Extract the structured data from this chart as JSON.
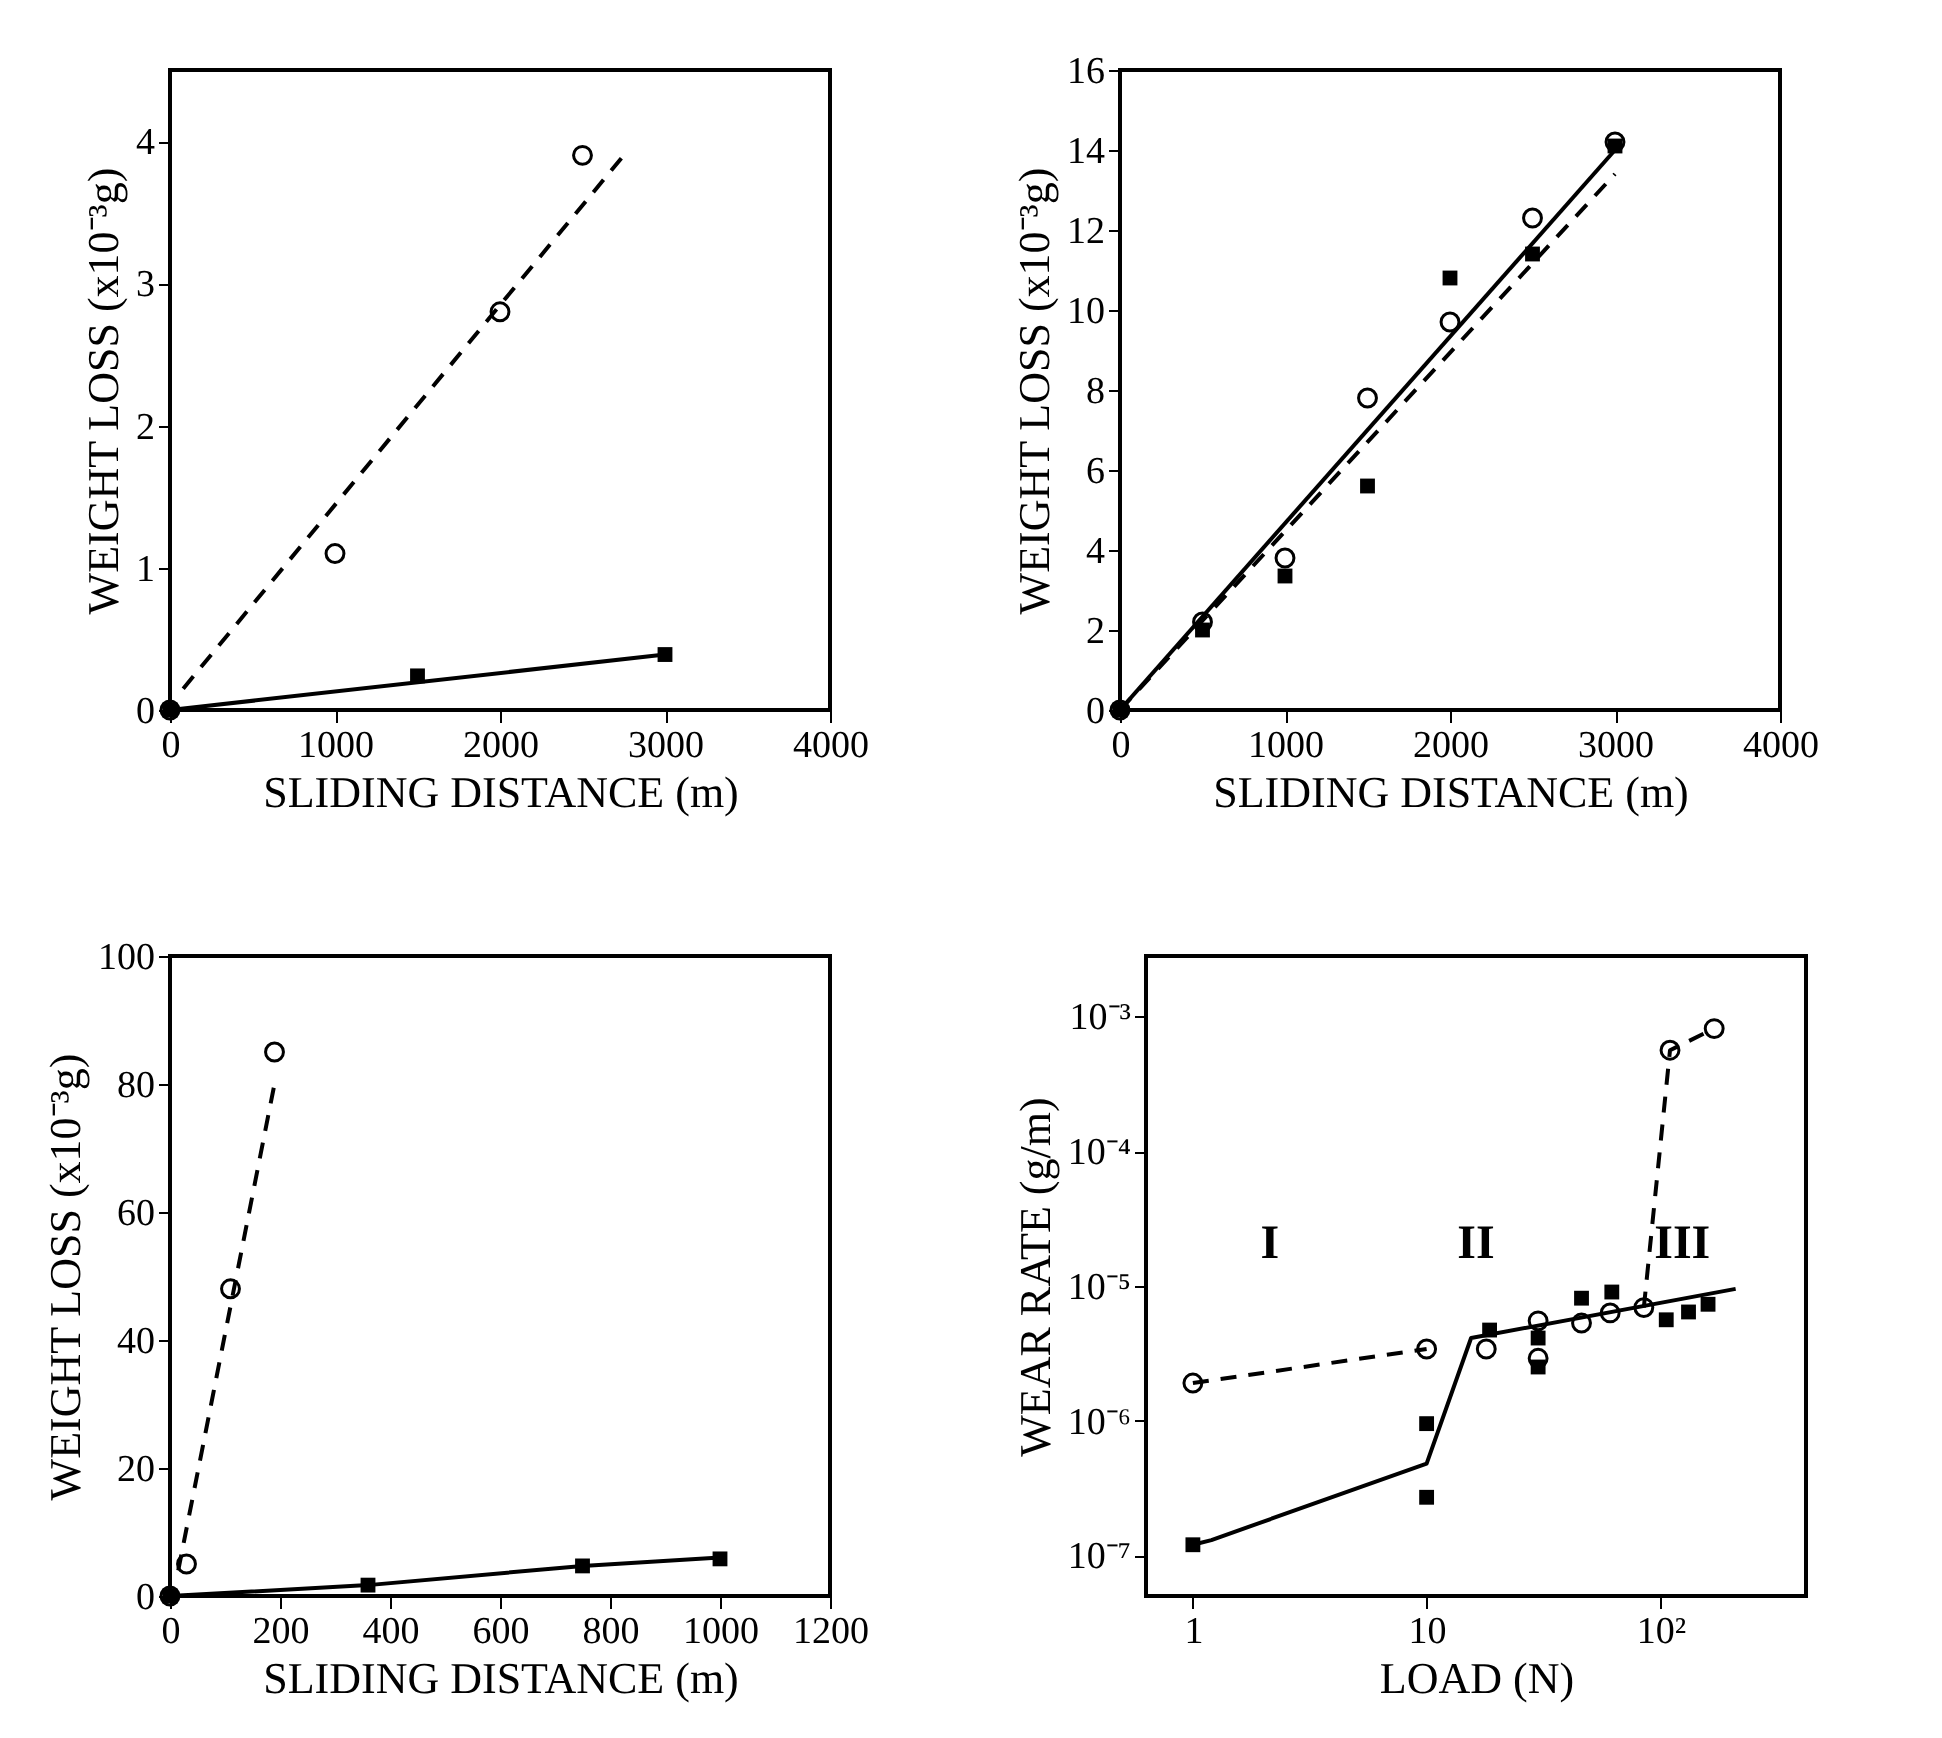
{
  "chart_data": [
    {
      "type": "scatter",
      "xlabel": "SLIDING DISTANCE (m)",
      "ylabel": "WEIGHT LOSS (x10⁻³g)",
      "xlim": [
        0,
        4000
      ],
      "xticks": [
        0,
        1000,
        2000,
        3000,
        4000
      ],
      "ylim": [
        0,
        4.5
      ],
      "yticks": [
        0,
        1,
        2,
        3,
        4
      ],
      "grid": false,
      "series": [
        {
          "type": "line",
          "color": "#000000",
          "line_style": "dashed",
          "marker": "none",
          "x": [
            80,
            2750
          ],
          "values": [
            0.15,
            3.9
          ]
        },
        {
          "type": "line",
          "color": "#000000",
          "line_style": "solid",
          "marker": "none",
          "x": [
            0,
            3000
          ],
          "values": [
            0,
            0.39
          ]
        },
        {
          "type": "scatter",
          "color": "#000000",
          "marker": "circle",
          "x": [
            0,
            1000,
            2000,
            2500
          ],
          "values": [
            0,
            1.1,
            2.8,
            3.9
          ]
        },
        {
          "type": "scatter",
          "color": "#000000",
          "marker": "square",
          "x": [
            0,
            1500,
            3000
          ],
          "values": [
            0,
            0.24,
            0.39
          ]
        }
      ]
    },
    {
      "type": "scatter",
      "xlabel": "SLIDING DISTANCE (m)",
      "ylabel": "WEIGHT LOSS (x10⁻³g)",
      "xlim": [
        0,
        4000
      ],
      "xticks": [
        0,
        1000,
        2000,
        3000,
        4000
      ],
      "ylim": [
        0,
        16
      ],
      "yticks": [
        0,
        2,
        4,
        6,
        8,
        10,
        12,
        14,
        16
      ],
      "grid": false,
      "series": [
        {
          "type": "line",
          "color": "#000000",
          "line_style": "dashed",
          "marker": "none",
          "x": [
            0,
            3000
          ],
          "values": [
            0,
            13.4
          ]
        },
        {
          "type": "line",
          "color": "#000000",
          "line_style": "solid",
          "marker": "none",
          "x": [
            0,
            3000
          ],
          "values": [
            0,
            14.0
          ]
        },
        {
          "type": "scatter",
          "color": "#000000",
          "marker": "circle",
          "x": [
            0,
            500,
            1000,
            1500,
            2000,
            2500,
            3000
          ],
          "values": [
            0,
            2.2,
            3.8,
            7.8,
            9.7,
            12.3,
            14.2
          ]
        },
        {
          "type": "scatter",
          "color": "#000000",
          "marker": "square",
          "x": [
            0,
            500,
            1000,
            1500,
            2000,
            2500,
            3000
          ],
          "values": [
            0,
            2.0,
            3.35,
            5.6,
            10.8,
            11.4,
            14.1
          ]
        }
      ]
    },
    {
      "type": "scatter",
      "xlabel": "SLIDING DISTANCE (m)",
      "ylabel": "WEIGHT LOSS (x10⁻³g)",
      "xlim": [
        0,
        1200
      ],
      "xticks": [
        0,
        200,
        400,
        600,
        800,
        1000,
        1200
      ],
      "ylim": [
        0,
        100
      ],
      "yticks": [
        0,
        20,
        40,
        60,
        80,
        100
      ],
      "grid": false,
      "series": [
        {
          "type": "line",
          "color": "#000000",
          "line_style": "dashed",
          "marker": "none",
          "x": [
            15,
            190
          ],
          "values": [
            4,
            80
          ]
        },
        {
          "type": "line",
          "color": "#000000",
          "line_style": "solid",
          "marker": "none",
          "x": [
            0,
            360,
            750,
            1000
          ],
          "values": [
            0,
            1.7,
            4.7,
            6
          ]
        },
        {
          "type": "scatter",
          "color": "#000000",
          "marker": "circle",
          "x": [
            0,
            30,
            110,
            190
          ],
          "values": [
            0,
            5,
            48,
            85
          ]
        },
        {
          "type": "scatter",
          "color": "#000000",
          "marker": "square",
          "x": [
            0,
            360,
            750,
            1000
          ],
          "values": [
            0,
            1.7,
            4.7,
            5.8
          ]
        }
      ]
    },
    {
      "type": "scatter",
      "xlabel": "LOAD (N)",
      "ylabel": "WEAR RATE (g/m)",
      "log": "xy",
      "xlim": [
        0.63,
        420
      ],
      "xticks": [
        1,
        10,
        {
          "value": 100,
          "label": "10²"
        }
      ],
      "ylim": [
        5e-08,
        0.0028
      ],
      "yticks": [
        {
          "value": 1e-07,
          "label": "10⁻⁷"
        },
        {
          "value": 1e-06,
          "label": "10⁻⁶"
        },
        {
          "value": 1e-05,
          "label": "10⁻⁵"
        },
        {
          "value": 0.0001,
          "label": "10⁻⁴"
        },
        {
          "value": 0.001,
          "label": "10⁻³"
        }
      ],
      "grid": false,
      "annotations": [
        "I",
        "II",
        "III"
      ],
      "series": [
        {
          "type": "line",
          "color": "#000000",
          "line_style": "dashed",
          "marker": "none",
          "x": [
            1,
            10
          ],
          "values": [
            1.9e-06,
            3.4e-06
          ]
        },
        {
          "type": "line",
          "color": "#000000",
          "line_style": "dashed",
          "marker": "none",
          "x": [
            85,
            110,
            170
          ],
          "values": [
            6.9e-06,
            0.00056,
            0.00081
          ]
        },
        {
          "type": "line",
          "color": "#000000",
          "line_style": "solid",
          "marker": "none",
          "x": [
            1,
            1.2,
            10,
            15.5,
            210
          ],
          "values": [
            1.2e-07,
            1.3e-07,
            4.8e-07,
            4.1e-06,
            9.5e-06
          ]
        },
        {
          "type": "scatter",
          "color": "#000000",
          "marker": "circle",
          "x": [
            1,
            10,
            18,
            30,
            30,
            46,
            61,
            85,
            110,
            170
          ],
          "values": [
            1.9e-06,
            3.4e-06,
            3.4e-06,
            5.5e-06,
            2.9e-06,
            5.3e-06,
            6.3e-06,
            6.9e-06,
            0.00056,
            0.00081
          ]
        },
        {
          "type": "scatter",
          "color": "#000000",
          "marker": "square",
          "x": [
            1,
            10,
            10,
            18.6,
            30,
            30,
            46,
            62,
            106,
            132,
            160
          ],
          "values": [
            1.2e-07,
            9.5e-07,
            2.7e-07,
            4.7e-06,
            4.1e-06,
            2.5e-06,
            8.1e-06,
            9e-06,
            5.6e-06,
            6.4e-06,
            7.3e-06
          ]
        }
      ]
    }
  ]
}
